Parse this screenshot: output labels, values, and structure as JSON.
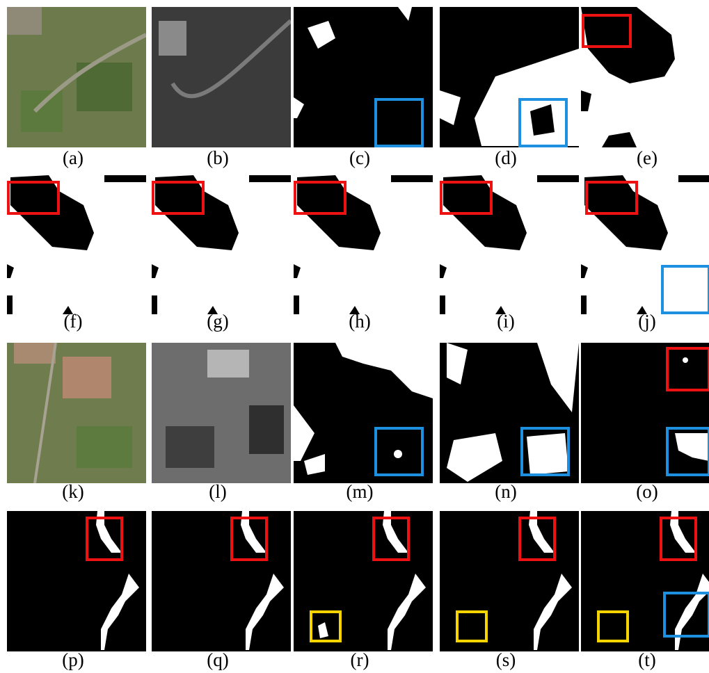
{
  "panels": [
    {
      "label": "(a)"
    },
    {
      "label": "(b)"
    },
    {
      "label": "(c)"
    },
    {
      "label": "(d)"
    },
    {
      "label": "(e)"
    },
    {
      "label": "(f)"
    },
    {
      "label": "(g)"
    },
    {
      "label": "(h)"
    },
    {
      "label": "(i)"
    },
    {
      "label": "(j)"
    },
    {
      "label": "(k)"
    },
    {
      "label": "(l)"
    },
    {
      "label": "(m)"
    },
    {
      "label": "(n)"
    },
    {
      "label": "(o)"
    },
    {
      "label": "(p)"
    },
    {
      "label": "(q)"
    },
    {
      "label": "(r)"
    },
    {
      "label": "(s)"
    },
    {
      "label": "(t)"
    }
  ]
}
